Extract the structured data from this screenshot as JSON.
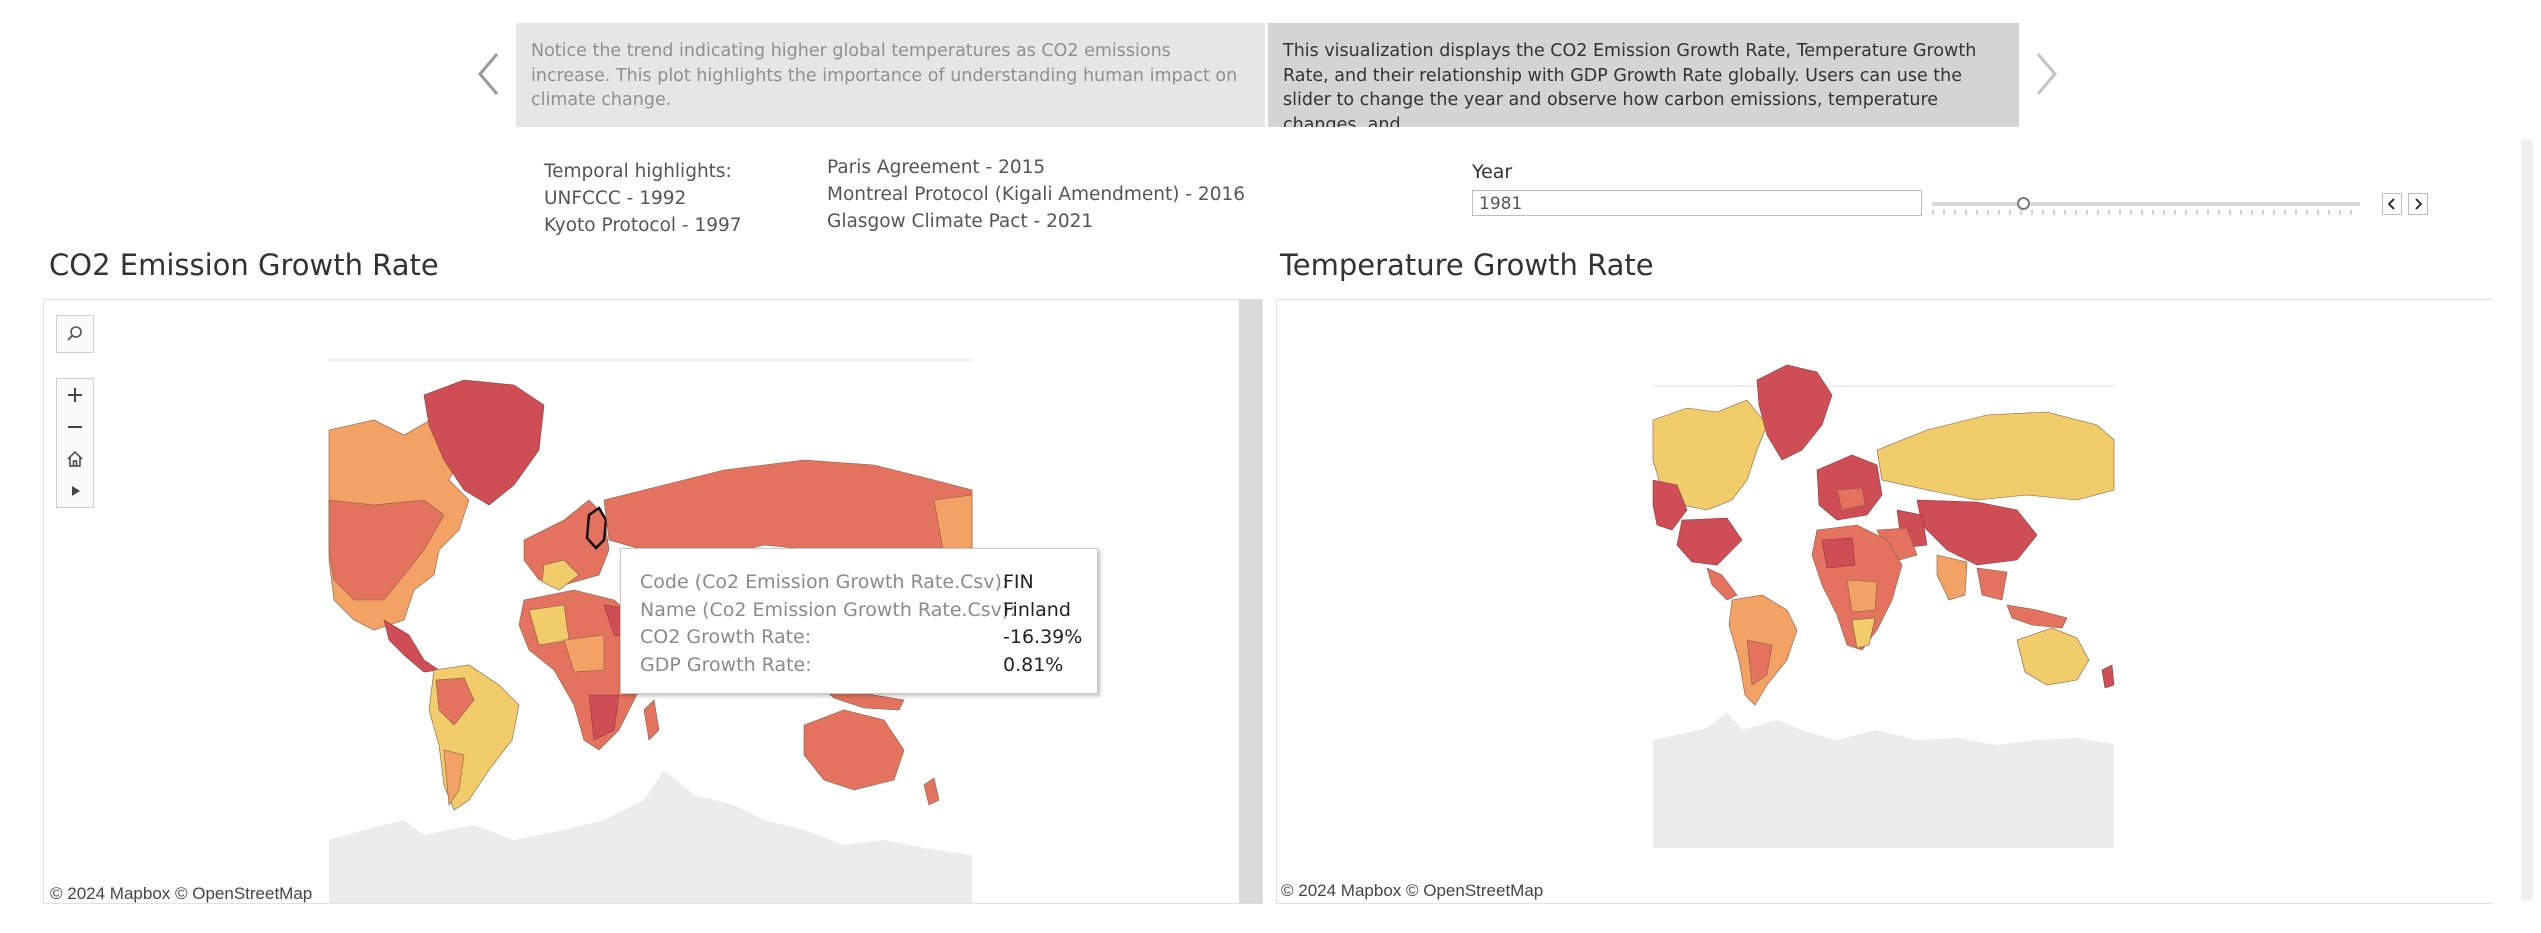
{
  "story": {
    "prev_card": "Notice the trend indicating higher global temperatures as CO2 emissions increase. This plot highlights the importance of understanding human impact on climate change.",
    "current_card": "This visualization displays the CO2 Emission Growth Rate, Temperature Growth Rate, and their relationship with GDP Growth Rate globally. Users can use the slider to change the year and observe how carbon emissions, temperature changes, and"
  },
  "highlights": {
    "heading": "Temporal highlights:",
    "left": [
      "UNFCCC - 1992",
      "Kyoto Protocol - 1997"
    ],
    "right": [
      "Paris Agreement - 2015",
      "Montreal Protocol (Kigali Amendment) - 2016",
      "Glasgow Climate Pact - 2021"
    ]
  },
  "year_filter": {
    "label": "Year",
    "value": "1981",
    "slider_fraction": 0.2
  },
  "panels": {
    "co2": {
      "title": "CO2 Emission Growth Rate",
      "attribution": "© 2024 Mapbox  © OpenStreetMap"
    },
    "temp": {
      "title": "Temperature Growth Rate",
      "attribution": "© 2024 Mapbox  © OpenStreetMap"
    }
  },
  "tooltip": {
    "rows": [
      {
        "key": "Code (Co2 Emission Growth Rate.Csv):",
        "value": "FIN"
      },
      {
        "key": "Name (Co2 Emission Growth Rate.Csv):",
        "value": "Finland"
      },
      {
        "key": "CO2 Growth Rate:",
        "value": "-16.39%"
      },
      {
        "key": "GDP Growth Rate:",
        "value": "0.81%"
      }
    ]
  },
  "colors": {
    "high": "#cf4d55",
    "mid_high": "#e3735f",
    "mid": "#f3a266",
    "low": "#f1cc6a",
    "antarctica": "#ececec"
  },
  "icons": [
    "search-icon",
    "zoom-in-icon",
    "zoom-out-icon",
    "home-icon",
    "play-icon",
    "chevron-left-icon",
    "chevron-right-icon"
  ]
}
